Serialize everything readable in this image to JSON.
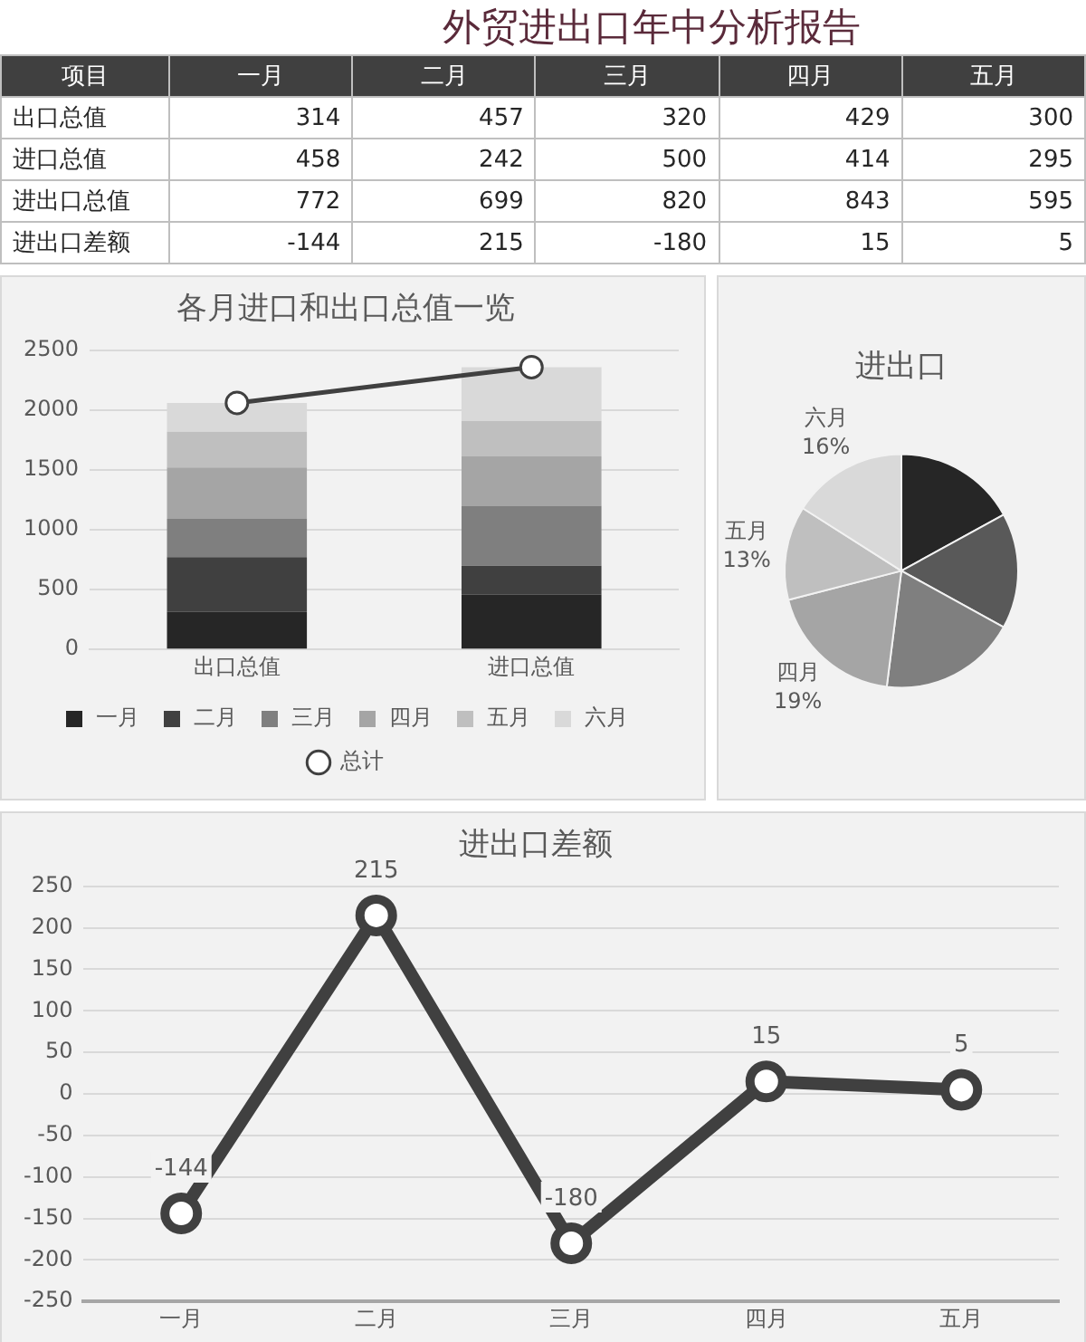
{
  "chart_data": [
    {
      "type": "other",
      "title": "外贸进出口年中分析报告",
      "ylabel": "项目",
      "categories": [
        "一月",
        "二月",
        "三月",
        "四月",
        "五月"
      ],
      "data_labels": true,
      "series": [
        {
          "name": "出口总值",
          "values": [
            314,
            457,
            320,
            429,
            300
          ]
        },
        {
          "name": "进口总值",
          "values": [
            458,
            242,
            500,
            414,
            295
          ]
        },
        {
          "name": "进出口总值",
          "values": [
            772,
            699,
            820,
            843,
            595
          ]
        },
        {
          "name": "进出口差额",
          "values": [
            -144,
            215,
            -180,
            15,
            5
          ]
        }
      ]
    },
    {
      "type": "bar",
      "title": "各月进口和出口总值一览",
      "categories": [
        "出口总值",
        "进口总值"
      ],
      "stacked": true,
      "ylim": [
        0,
        2500
      ],
      "yticks": [
        0,
        500,
        1000,
        1500,
        2000,
        2500
      ],
      "grid": "y",
      "legend": "bottom",
      "series": [
        {
          "name": "一月",
          "color": "#262626",
          "values": [
            314,
            458
          ]
        },
        {
          "name": "二月",
          "color": "#404040",
          "values": [
            457,
            242
          ]
        },
        {
          "name": "三月",
          "color": "#7f7f7f",
          "values": [
            320,
            500
          ]
        },
        {
          "name": "四月",
          "color": "#a5a5a5",
          "values": [
            429,
            414
          ]
        },
        {
          "name": "五月",
          "color": "#bfbfbf",
          "values": [
            300,
            295
          ]
        },
        {
          "name": "六月",
          "color": "#d9d9d9",
          "values": [
            240,
            450
          ]
        },
        {
          "name": "总计",
          "type": "line",
          "color": "#404040",
          "marker": "circle",
          "values": [
            2060,
            2359
          ]
        }
      ]
    },
    {
      "type": "pie",
      "title": "进出口",
      "categories": [
        null,
        null,
        null,
        "四月",
        "五月",
        "六月"
      ],
      "values": [
        17,
        16,
        19,
        19,
        13,
        16
      ],
      "colors": [
        "#262626",
        "#595959",
        "#7f7f7f",
        "#a5a5a5",
        "#bfbfbf",
        "#d9d9d9"
      ],
      "value_labels": [
        null,
        null,
        null,
        "19%",
        "13%",
        "16%"
      ]
    },
    {
      "type": "line",
      "title": "进出口差额",
      "categories": [
        "一月",
        "二月",
        "三月",
        "四月",
        "五月"
      ],
      "values": [
        -144,
        215,
        -180,
        15,
        5
      ],
      "color": "#404040",
      "marker": "circle",
      "ylim": [
        -250,
        250
      ],
      "yticks": [
        -250,
        -200,
        -150,
        -100,
        -50,
        0,
        50,
        100,
        150,
        200,
        250
      ],
      "grid": "y",
      "data_labels": true
    }
  ]
}
